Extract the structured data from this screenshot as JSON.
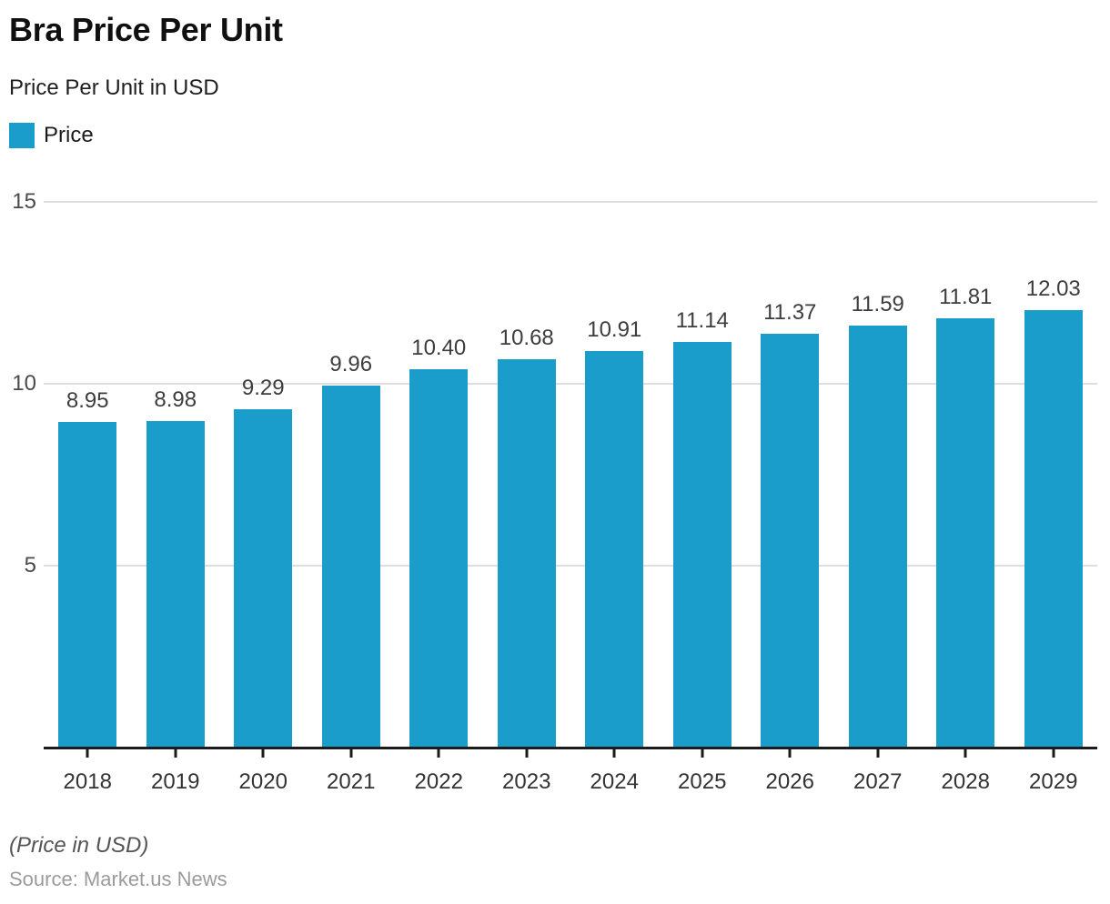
{
  "header": {
    "title": "Bra Price Per Unit",
    "subtitle": "Price Per Unit in USD"
  },
  "legend": {
    "label": "Price"
  },
  "chart_data": {
    "type": "bar",
    "title": "Bra Price Per Unit",
    "subtitle": "Price Per Unit in USD",
    "categories": [
      "2018",
      "2019",
      "2020",
      "2021",
      "2022",
      "2023",
      "2024",
      "2025",
      "2026",
      "2027",
      "2028",
      "2029"
    ],
    "series": [
      {
        "name": "Price",
        "values": [
          8.95,
          8.98,
          9.29,
          9.96,
          10.4,
          10.68,
          10.91,
          11.14,
          11.37,
          11.59,
          11.81,
          12.03
        ]
      }
    ],
    "value_labels": [
      "8.95",
      "8.98",
      "9.29",
      "9.96",
      "10.40",
      "10.68",
      "10.91",
      "11.14",
      "11.37",
      "11.59",
      "11.81",
      "12.03"
    ],
    "xlabel": "",
    "ylabel": "",
    "ylim": [
      0,
      15
    ],
    "yticks": [
      5,
      10,
      15
    ],
    "grid": true,
    "legend_position": "top-left",
    "bar_color": "#1a9dca",
    "gridline_color": "#dedede",
    "axis_line_color": "#1b1b1b"
  },
  "footer": {
    "note": "(Price in USD)",
    "source": "Source: Market.us News"
  }
}
